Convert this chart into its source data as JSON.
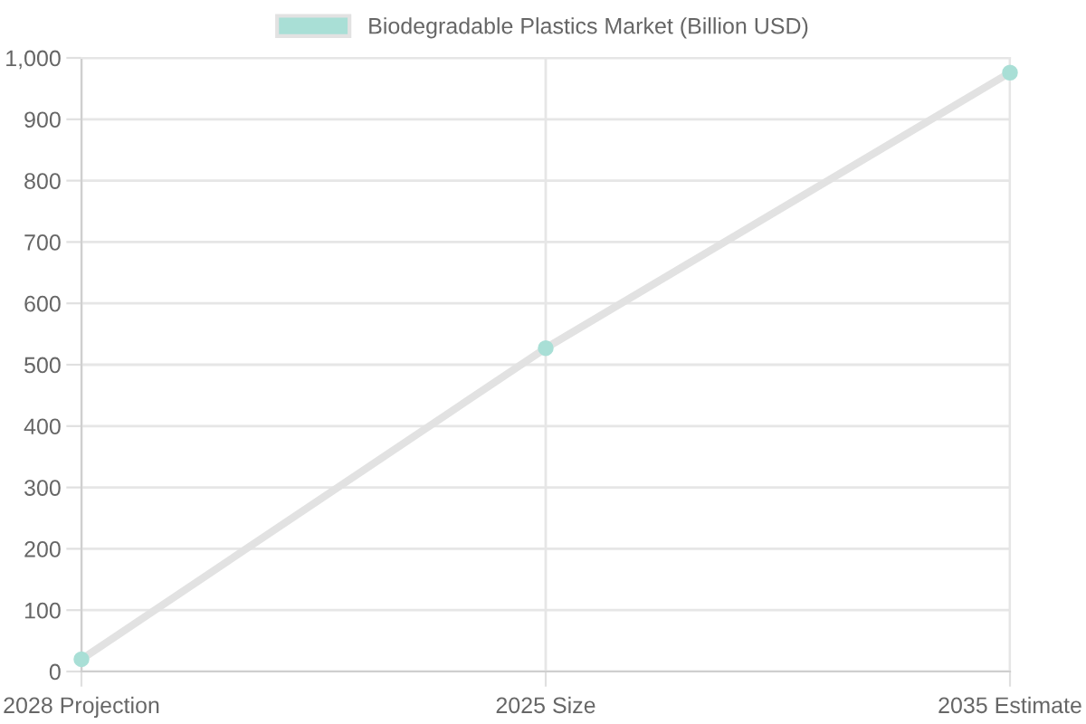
{
  "chart_data": {
    "type": "line",
    "categories": [
      "2028 Projection",
      "2025 Size",
      "2035 Estimate"
    ],
    "series": [
      {
        "name": "Biodegradable Plastics Market (Billion USD)",
        "color": "#e2e2e2",
        "colors": [
          "#a9dfd6",
          "#a9dfd6",
          "#a9dfd6"
        ],
        "values": [
          20,
          527,
          976
        ]
      }
    ],
    "ylim": [
      0,
      1000
    ],
    "yticks": [
      0,
      100,
      200,
      300,
      400,
      500,
      600,
      700,
      800,
      900,
      {
        "value": 1000,
        "label": "1,000"
      }
    ],
    "grid": true,
    "legend": "top",
    "marker": "circle",
    "line_style": "solid"
  }
}
